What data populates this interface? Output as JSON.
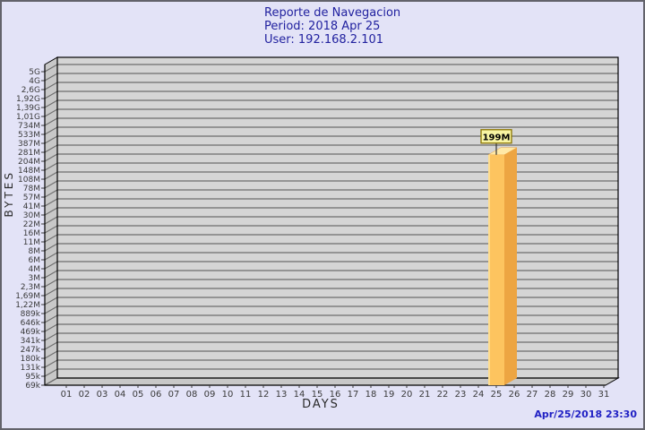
{
  "header": {
    "title": "Reporte de Navegacion",
    "period_label": "Period: 2018 Apr 25",
    "user_label": "User: 192.168.2.101"
  },
  "footer": {
    "timestamp": "Apr/25/2018 23:30"
  },
  "chart_data": {
    "type": "bar",
    "title": "Reporte de Navegacion",
    "subtitle": "Period: 2018 Apr 25 — User: 192.168.2.101",
    "xlabel": "DAYS",
    "ylabel": "BYTES",
    "scale": "logarithmic",
    "grid": true,
    "legend": "none",
    "x_categories": [
      "01",
      "02",
      "03",
      "04",
      "05",
      "06",
      "07",
      "08",
      "09",
      "10",
      "11",
      "12",
      "13",
      "14",
      "15",
      "16",
      "17",
      "18",
      "19",
      "20",
      "21",
      "22",
      "23",
      "24",
      "25",
      "26",
      "27",
      "28",
      "29",
      "30",
      "31"
    ],
    "y_tick_labels": [
      "5G",
      "4G",
      "2,6G",
      "1,92G",
      "1,39G",
      "1,01G",
      "734M",
      "533M",
      "387M",
      "281M",
      "204M",
      "148M",
      "108M",
      "78M",
      "57M",
      "41M",
      "30M",
      "22M",
      "16M",
      "11M",
      "8M",
      "6M",
      "4M",
      "3M",
      "2,3M",
      "1,69M",
      "1,22M",
      "889k",
      "646k",
      "469k",
      "341k",
      "247k",
      "180k",
      "131k",
      "95k",
      "69k"
    ],
    "bars": [
      {
        "day": "25",
        "value_label": "199M"
      }
    ],
    "colors": {
      "page_bg": "#e3e3f7",
      "plot_bg": "#d5d5d5",
      "wall": "#c8c8c8",
      "grid": "#6e6e6e",
      "axis": "#000000",
      "tick_text": "#3a3a3a",
      "title_text": "#21219f",
      "timestamp_text": "#2121c4",
      "bar_front": "#fdc45f",
      "bar_side": "#eda542",
      "bar_top": "#ffe9a6",
      "bar_highlight": "#ffdd8e",
      "label_box_bg": "#f8f4a2",
      "label_box_border": "#8b7500"
    }
  }
}
